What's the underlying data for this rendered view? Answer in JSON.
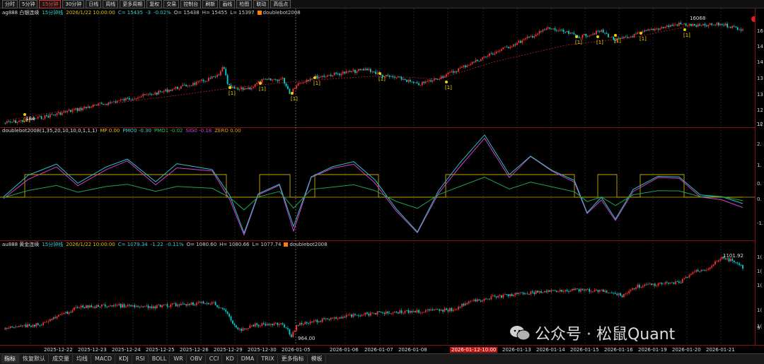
{
  "toolbar": {
    "items": [
      "分时",
      "5分钟",
      "15分钟",
      "30分钟",
      "日线",
      "周线",
      "更多周期",
      "复权",
      "交易",
      "控制台",
      "刷新",
      "画线",
      "检图",
      "联动",
      "高低点"
    ],
    "active_index": 2
  },
  "pane1": {
    "symbol": "ag888 白银连续",
    "period": "15分钟线",
    "datetime": "2026/1/22 10:00:00",
    "close": "C= 15435",
    "change": "-3",
    "pct": "-0.02%",
    "open": "O= 15438",
    "high": "H= 15455",
    "low": "L= 15397",
    "indicator": "doublebot2008",
    "high_label": "16068",
    "low_label": "184",
    "signal_label": "[1]",
    "axis_ticks": [
      "16",
      "14",
      "14",
      "13",
      "13",
      "12",
      "12",
      "1("
    ]
  },
  "pane2": {
    "name": "doublebot2008(1,35,20,10,10,0,1,1,1)",
    "mp": "MP 0.00",
    "pmo0": "PMO0 -0.30",
    "pmo1": "PMO1 -0.02",
    "sig0": "SIG0 -0.18",
    "zero": "ZERO 0.00",
    "axis_ticks": [
      "2.",
      "1.",
      "0.",
      "0.",
      "-1."
    ]
  },
  "pane3": {
    "symbol": "au888 黄金连续",
    "period": "15分钟线",
    "datetime": "2026/1/22 10:00:00",
    "close": "C= 1079.34",
    "change": "-1.22",
    "pct": "-0.11%",
    "open": "O= 1080.60",
    "high": "H= 1080.66",
    "low": "L= 1077.74",
    "indicator": "doublebot2008",
    "high_label": "1101.92",
    "low_label": "964.00",
    "axis_ticks": [
      "1(",
      "1(",
      "1(",
      "1(",
      "1(",
      "9"
    ]
  },
  "dates": [
    "2025-12-22",
    "2025-12-23",
    "2025-12-24",
    "2025-12-25",
    "2025-12-26",
    "2025-12-29",
    "2025-12-30",
    "2026-01-05",
    "2026-01-06",
    "2026-01-07",
    "2026-01-08",
    "2026-01-12-10:00",
    "2026-01-13",
    "2026-01-14",
    "2026-01-15",
    "2026-01-16",
    "2026-01-19",
    "2026-01-20",
    "2026-01-21"
  ],
  "tabs": [
    "指标",
    "恢复默认",
    "成交量",
    "均线",
    "MACD",
    "KDJ",
    "RSI",
    "BOLL",
    "WR",
    "OBV",
    "CCI",
    "KD",
    "DMA",
    "TRIX",
    "更多指标",
    "模板"
  ],
  "watermark": "公众号 · 松鼠Quant",
  "colors": {
    "up": "#ff3030",
    "down": "#00d0d0",
    "border": "#8a1010"
  }
}
